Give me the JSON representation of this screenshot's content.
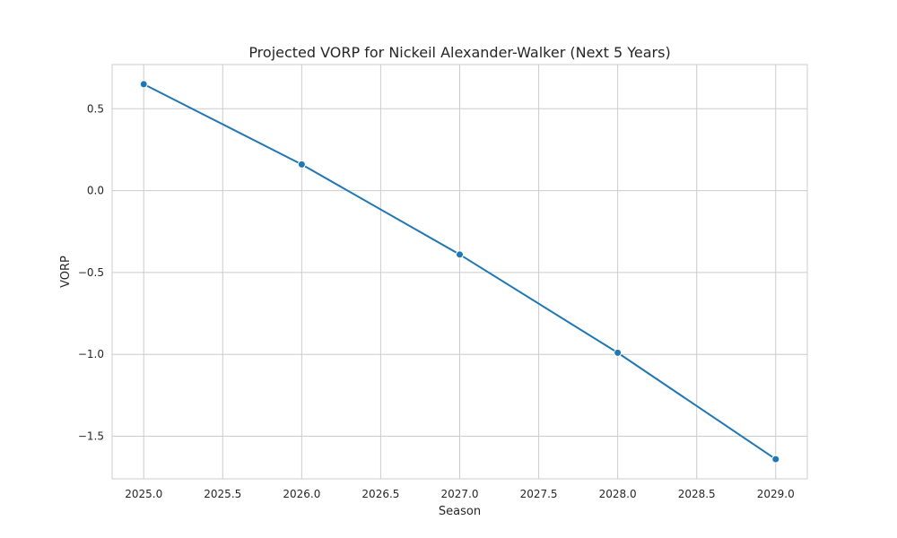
{
  "chart_data": {
    "type": "line",
    "title": "Projected VORP for Nickeil Alexander-Walker (Next 5 Years)",
    "xlabel": "Season",
    "ylabel": "VORP",
    "x": [
      2025.0,
      2026.0,
      2027.0,
      2028.0,
      2029.0
    ],
    "series": [
      {
        "values": [
          0.65,
          0.16,
          -0.39,
          -0.99,
          -1.64
        ],
        "color": "#1f77b4",
        "marker": "circle"
      }
    ],
    "xlim": [
      2024.8,
      2029.2
    ],
    "ylim": [
      -1.76,
      0.77
    ],
    "xticks": [
      "2025.0",
      "2025.5",
      "2026.0",
      "2026.5",
      "2027.0",
      "2027.5",
      "2028.0",
      "2028.5",
      "2029.0"
    ],
    "xtick_values": [
      2025.0,
      2025.5,
      2026.0,
      2026.5,
      2027.0,
      2027.5,
      2028.0,
      2028.5,
      2029.0
    ],
    "yticks": [
      "0.5",
      "0.0",
      "−0.5",
      "−1.0",
      "−1.5"
    ],
    "ytick_values": [
      0.5,
      0.0,
      -0.5,
      -1.0,
      -1.5
    ],
    "grid": true,
    "legend": false
  }
}
